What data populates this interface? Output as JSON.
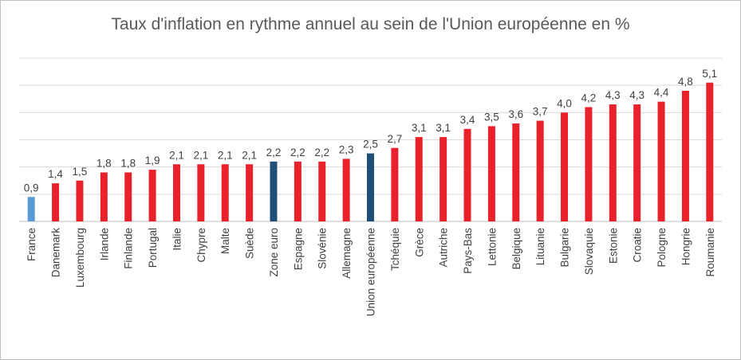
{
  "chart_data": {
    "type": "bar",
    "title": "Taux d'inflation en rythme annuel au sein de l'Union européenne en %",
    "categories": [
      "France",
      "Danemark",
      "Luxembourg",
      "Irlande",
      "Finlande",
      "Portugal",
      "Italie",
      "Chypre",
      "Malte",
      "Suède",
      "Zone euro",
      "Espagne",
      "Slovénie",
      "Allemagne",
      "Union européenne",
      "Tchéquie",
      "Grèce",
      "Autriche",
      "Pays-Bas",
      "Lettonie",
      "Belgique",
      "Lituanie",
      "Bulgarie",
      "Slovaquie",
      "Estonie",
      "Croatie",
      "Pologne",
      "Hongrie",
      "Roumanie"
    ],
    "values": [
      0.9,
      1.4,
      1.5,
      1.8,
      1.8,
      1.9,
      2.1,
      2.1,
      2.1,
      2.1,
      2.2,
      2.2,
      2.2,
      2.3,
      2.5,
      2.7,
      3.1,
      3.1,
      3.4,
      3.5,
      3.6,
      3.7,
      4.0,
      4.2,
      4.3,
      4.3,
      4.4,
      4.8,
      5.1
    ],
    "value_labels": [
      "0,9",
      "1,4",
      "1,5",
      "1,8",
      "1,8",
      "1,9",
      "2,1",
      "2,1",
      "2,1",
      "2,1",
      "2,2",
      "2,2",
      "2,2",
      "2,3",
      "2,5",
      "2,7",
      "3,1",
      "3,1",
      "3,4",
      "3,5",
      "3,6",
      "3,7",
      "4,0",
      "4,2",
      "4,3",
      "4,3",
      "4,4",
      "4,8",
      "5,1"
    ],
    "ylim": [
      0,
      6
    ],
    "grid": true,
    "legend": "none",
    "colors": {
      "default": "#e8212b",
      "France": "#5b9bd5",
      "Zone euro": "#1f4e79",
      "Union européenne": "#1f4e79",
      "gridline": "#d9d9d9",
      "axis": "#bfbfbf"
    }
  }
}
